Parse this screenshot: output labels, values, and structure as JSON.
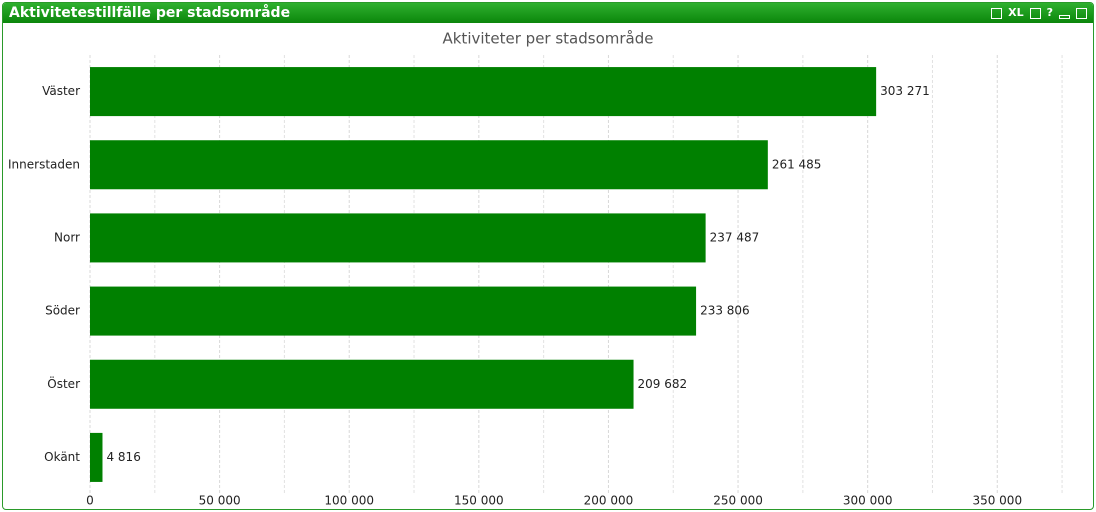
{
  "window": {
    "title": "Aktivitetestillfälle per stadsområde",
    "buttons": [
      "XL",
      "?"
    ]
  },
  "chart_data": {
    "type": "barh",
    "title": "Aktiviteter per stadsområde",
    "categories": [
      "Väster",
      "Innerstaden",
      "Norr",
      "Söder",
      "Öster",
      "Okänt"
    ],
    "values": [
      303271,
      261485,
      237487,
      233806,
      209682,
      4816
    ],
    "value_labels": [
      "303 271",
      "261 485",
      "237 487",
      "233 806",
      "209 682",
      "4 816"
    ],
    "color": "#008000",
    "xlim": [
      0,
      385000
    ],
    "xticks": [
      0,
      {
        "value": 50000,
        "label": "50 000"
      },
      {
        "value": 100000,
        "label": "100 000"
      },
      {
        "value": 150000,
        "label": "150 000"
      },
      {
        "value": 200000,
        "label": "200 000"
      },
      {
        "value": 250000,
        "label": "250 000"
      },
      {
        "value": 300000,
        "label": "300 000"
      },
      {
        "value": 350000,
        "label": "350 000"
      }
    ],
    "xminorticks": [
      25000,
      75000,
      125000,
      175000,
      225000,
      275000,
      325000,
      375000
    ],
    "grid": true
  }
}
